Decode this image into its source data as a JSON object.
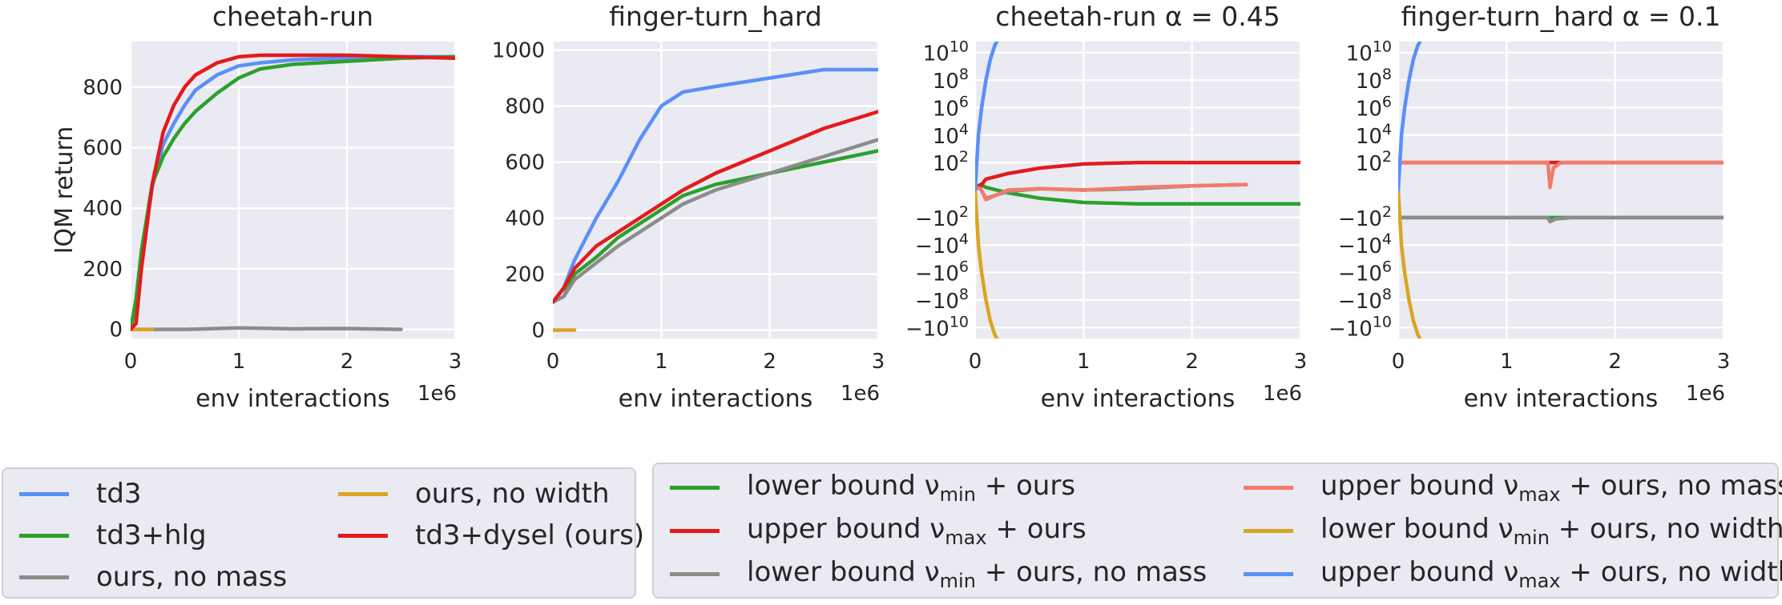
{
  "figure": {
    "ylabel": "IQM return",
    "xlabel": "env interactions",
    "x_exponent": "1e6"
  },
  "chart_data": [
    {
      "type": "line",
      "title": "cheetah-run",
      "xlabel": "env interactions",
      "ylabel": "IQM return",
      "xlim": [
        0,
        3
      ],
      "ylim": [
        -30,
        950
      ],
      "xticks": [
        "0",
        "1",
        "2",
        "3"
      ],
      "yticks": [
        0,
        200,
        400,
        600,
        800
      ],
      "grid": true,
      "series": [
        {
          "name": "td3",
          "color": "#5b8ff9",
          "x": [
            0,
            0.05,
            0.1,
            0.2,
            0.3,
            0.4,
            0.5,
            0.6,
            0.8,
            1.0,
            1.2,
            1.5,
            2.0,
            2.5,
            3.0
          ],
          "y": [
            0,
            80,
            230,
            470,
            610,
            680,
            740,
            790,
            840,
            870,
            880,
            890,
            895,
            900,
            900
          ]
        },
        {
          "name": "td3+hlg",
          "color": "#2ca02c",
          "x": [
            0,
            0.05,
            0.1,
            0.2,
            0.3,
            0.4,
            0.5,
            0.6,
            0.8,
            1.0,
            1.2,
            1.5,
            2.0,
            2.5,
            3.0
          ],
          "y": [
            0,
            100,
            260,
            480,
            570,
            630,
            680,
            720,
            780,
            830,
            860,
            875,
            885,
            895,
            900
          ]
        },
        {
          "name": "ours, no mass",
          "color": "#8c8c8c",
          "x": [
            0,
            0.5,
            1.0,
            1.5,
            2.0,
            2.5
          ],
          "y": [
            0,
            0,
            5,
            2,
            3,
            0
          ]
        },
        {
          "name": "ours, no width",
          "color": "#d9a521",
          "x": [
            0,
            0.1,
            0.2
          ],
          "y": [
            0,
            0,
            0
          ]
        },
        {
          "name": "td3+dysel (ours)",
          "color": "#e41a1c",
          "x": [
            0,
            0.05,
            0.1,
            0.2,
            0.3,
            0.4,
            0.5,
            0.6,
            0.8,
            1.0,
            1.2,
            1.5,
            2.0,
            2.5,
            3.0
          ],
          "y": [
            0,
            20,
            200,
            480,
            650,
            740,
            800,
            840,
            880,
            900,
            905,
            905,
            905,
            900,
            895
          ]
        }
      ]
    },
    {
      "type": "line",
      "title": "finger-turn_hard",
      "xlabel": "env interactions",
      "xlim": [
        0,
        3
      ],
      "ylim": [
        -30,
        1030
      ],
      "xticks": [
        "0",
        "1",
        "2",
        "3"
      ],
      "yticks": [
        0,
        200,
        400,
        600,
        800,
        1000
      ],
      "grid": true,
      "series": [
        {
          "name": "td3",
          "color": "#5b8ff9",
          "x": [
            0,
            0.1,
            0.2,
            0.4,
            0.6,
            0.8,
            1.0,
            1.2,
            1.5,
            2.0,
            2.5,
            3.0
          ],
          "y": [
            100,
            150,
            250,
            400,
            530,
            680,
            800,
            850,
            870,
            900,
            930,
            930
          ]
        },
        {
          "name": "td3+hlg",
          "color": "#2ca02c",
          "x": [
            0,
            0.1,
            0.2,
            0.4,
            0.6,
            0.8,
            1.0,
            1.2,
            1.5,
            2.0,
            2.5,
            3.0
          ],
          "y": [
            100,
            120,
            200,
            260,
            330,
            380,
            430,
            480,
            520,
            560,
            600,
            640
          ]
        },
        {
          "name": "ours, no mass",
          "color": "#8c8c8c",
          "x": [
            0,
            0.1,
            0.2,
            0.4,
            0.6,
            0.8,
            1.0,
            1.2,
            1.5,
            2.0,
            2.5,
            3.0
          ],
          "y": [
            100,
            120,
            180,
            240,
            300,
            350,
            400,
            450,
            500,
            560,
            620,
            680
          ]
        },
        {
          "name": "ours, no width",
          "color": "#d9a521",
          "x": [
            0,
            0.1,
            0.2
          ],
          "y": [
            0,
            0,
            0
          ]
        },
        {
          "name": "td3+dysel (ours)",
          "color": "#e41a1c",
          "x": [
            0,
            0.1,
            0.2,
            0.4,
            0.6,
            0.8,
            1.0,
            1.2,
            1.5,
            2.0,
            2.5,
            3.0
          ],
          "y": [
            100,
            150,
            220,
            300,
            350,
            400,
            450,
            500,
            560,
            640,
            720,
            780
          ]
        }
      ]
    },
    {
      "type": "line",
      "title": "cheetah-run α = 0.45",
      "xlabel": "env interactions",
      "scale": "symlog",
      "xlim": [
        0,
        3
      ],
      "ylim": [
        -10.8,
        10.8
      ],
      "xticks": [
        "0",
        "1",
        "2",
        "3"
      ],
      "yticks": [
        "10^10",
        "10^8",
        "10^6",
        "10^4",
        "10^2",
        "-10^2",
        "-10^4",
        "-10^6",
        "-10^8",
        "-10^10"
      ],
      "grid": true,
      "series": [
        {
          "name": "lower bound ν_min + ours",
          "color": "#2ca02c",
          "x": [
            0,
            0.05,
            0.1,
            0.3,
            0.6,
            1.0,
            1.5,
            2.0,
            2.5,
            3.0
          ],
          "y": [
            0.2,
            0.4,
            0.2,
            -0.2,
            -0.6,
            -0.9,
            -1.0,
            -1.0,
            -1.0,
            -1.0
          ]
        },
        {
          "name": "upper bound ν_max + ours",
          "color": "#e41a1c",
          "x": [
            0,
            0.05,
            0.1,
            0.3,
            0.6,
            1.0,
            1.5,
            2.0,
            2.5,
            3.0
          ],
          "y": [
            0.2,
            0.3,
            0.8,
            1.2,
            1.6,
            1.9,
            2.0,
            2.0,
            2.0,
            2.0
          ]
        },
        {
          "name": "lower bound ν_min + ours, no mass",
          "color": "#8c8c8c",
          "x": [
            0,
            0.05,
            0.1,
            0.3,
            0.6,
            1.0,
            1.5,
            2.0,
            2.5
          ],
          "y": [
            0.2,
            0.1,
            -0.6,
            -0.1,
            0.1,
            0.0,
            0.1,
            0.3,
            0.4
          ]
        },
        {
          "name": "upper bound ν_max + ours, no mass",
          "color": "#f47a6b",
          "x": [
            0,
            0.05,
            0.1,
            0.3,
            0.6,
            1.0,
            1.5,
            2.0,
            2.5
          ],
          "y": [
            0.2,
            0.1,
            -0.7,
            0.0,
            0.1,
            0.0,
            0.2,
            0.3,
            0.4
          ]
        },
        {
          "name": "lower bound ν_min + ours, no width",
          "color": "#d9a521",
          "x": [
            0,
            0.03,
            0.06,
            0.1,
            0.14,
            0.18,
            0.2
          ],
          "y": [
            0,
            -4,
            -6,
            -8,
            -9.5,
            -10.5,
            -10.8
          ]
        },
        {
          "name": "upper bound ν_max + ours, no width",
          "color": "#5b8ff9",
          "x": [
            0,
            0.03,
            0.06,
            0.1,
            0.14,
            0.18,
            0.2
          ],
          "y": [
            0,
            4,
            6,
            8,
            9.5,
            10.5,
            10.8
          ]
        }
      ]
    },
    {
      "type": "line",
      "title": "finger-turn_hard α = 0.1",
      "xlabel": "env interactions",
      "scale": "symlog",
      "xlim": [
        0,
        3
      ],
      "ylim": [
        -10.8,
        10.8
      ],
      "xticks": [
        "0",
        "1",
        "2",
        "3"
      ],
      "yticks": [
        "10^10",
        "10^8",
        "10^6",
        "10^4",
        "10^2",
        "-10^2",
        "-10^4",
        "-10^6",
        "-10^8",
        "-10^10"
      ],
      "grid": true,
      "series": [
        {
          "name": "lower bound ν_min + ours",
          "color": "#2ca02c",
          "x": [
            0,
            0.5,
            1.0,
            1.5,
            2.0,
            2.5,
            3.0
          ],
          "y": [
            -2,
            -2,
            -2,
            -2,
            -2,
            -2,
            -2
          ]
        },
        {
          "name": "upper bound ν_max + ours",
          "color": "#e41a1c",
          "x": [
            0,
            0.5,
            1.0,
            1.5,
            2.0,
            2.5,
            3.0
          ],
          "y": [
            2,
            2,
            2,
            2,
            2,
            2,
            2
          ]
        },
        {
          "name": "lower bound ν_min + ours, no mass",
          "color": "#8c8c8c",
          "x": [
            0,
            0.5,
            1.0,
            1.38,
            1.4,
            1.45,
            1.6,
            2.0,
            2.5,
            3.0
          ],
          "y": [
            -2,
            -2,
            -2,
            -2,
            -2.3,
            -2.1,
            -2,
            -2,
            -2,
            -2
          ]
        },
        {
          "name": "upper bound ν_max + ours, no mass",
          "color": "#f47a6b",
          "x": [
            0,
            0.5,
            1.0,
            1.38,
            1.4,
            1.43,
            1.5,
            2.0,
            2.5,
            3.0
          ],
          "y": [
            2,
            2,
            2,
            2,
            0.2,
            1.6,
            2,
            2,
            2,
            2
          ]
        },
        {
          "name": "lower bound ν_min + ours, no width",
          "color": "#d9a521",
          "x": [
            0,
            0.03,
            0.06,
            0.1,
            0.14,
            0.18,
            0.2
          ],
          "y": [
            0,
            -4,
            -6,
            -8,
            -9.5,
            -10.5,
            -10.8
          ]
        },
        {
          "name": "upper bound ν_max + ours, no width",
          "color": "#5b8ff9",
          "x": [
            0,
            0.03,
            0.06,
            0.1,
            0.14,
            0.18,
            0.2
          ],
          "y": [
            0,
            4,
            6,
            8,
            9.5,
            10.5,
            10.8
          ]
        }
      ]
    }
  ],
  "legend_left": {
    "items": [
      {
        "label": "td3",
        "color": "#5b8ff9"
      },
      {
        "label": "td3+hlg",
        "color": "#2ca02c"
      },
      {
        "label": "ours, no mass",
        "color": "#8c8c8c"
      },
      {
        "label": "ours, no width",
        "color": "#d9a521"
      },
      {
        "label": "td3+dysel (ours)",
        "color": "#e41a1c"
      }
    ]
  },
  "legend_right": {
    "items": [
      {
        "prefix": "lower bound ",
        "sym": "ν",
        "sub": "min",
        "suffix": " + ours",
        "color": "#2ca02c"
      },
      {
        "prefix": "upper bound ",
        "sym": "ν",
        "sub": "max",
        "suffix": " + ours",
        "color": "#e41a1c"
      },
      {
        "prefix": "lower bound ",
        "sym": "ν",
        "sub": "min",
        "suffix": " + ours, no mass",
        "color": "#8c8c8c"
      },
      {
        "prefix": "upper bound ",
        "sym": "ν",
        "sub": "max",
        "suffix": " + ours, no mass",
        "color": "#f47a6b"
      },
      {
        "prefix": "lower bound ",
        "sym": "ν",
        "sub": "min",
        "suffix": " + ours, no width",
        "color": "#d9a521"
      },
      {
        "prefix": "upper bound ",
        "sym": "ν",
        "sub": "max",
        "suffix": " + ours, no width",
        "color": "#5b8ff9"
      }
    ]
  }
}
